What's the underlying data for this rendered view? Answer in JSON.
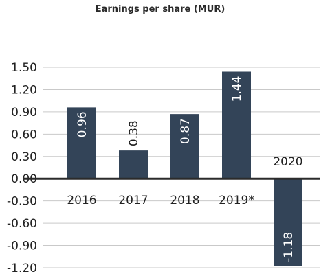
{
  "chart_data": {
    "type": "bar",
    "title": "Earnings per share (MUR)",
    "xlabel": "",
    "ylabel": "",
    "categories": [
      "2016",
      "2017",
      "2018",
      "2019*",
      "2020"
    ],
    "values": [
      0.96,
      0.38,
      0.87,
      1.44,
      -1.18
    ],
    "value_labels": [
      "0.96",
      "0.38",
      "0.87",
      "1.44",
      "-1.18"
    ],
    "yticks": [
      1.5,
      1.2,
      0.9,
      0.6,
      0.3,
      0.0,
      -0.3,
      -0.6,
      -0.9,
      -1.2
    ],
    "ytick_labels": [
      "1.50",
      "1.20",
      "0.90",
      "0.60",
      "0.30",
      "0.00",
      "-0.30",
      "-0.60",
      "-0.90",
      "-1.20"
    ],
    "ylim": [
      -1.2,
      1.5
    ],
    "grid": true,
    "legend": "none",
    "colors": {
      "bar": "#334458",
      "grid": "#c9c9c9",
      "baseline": "#2b2b2b",
      "label_inside": "#ffffff",
      "label_outside": "#1a1a1a"
    }
  }
}
